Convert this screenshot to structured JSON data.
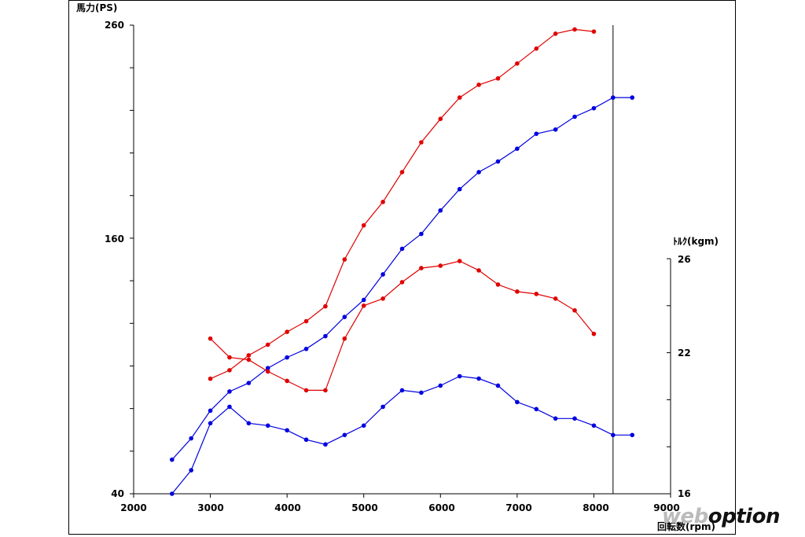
{
  "chart_data": {
    "type": "line",
    "title": "",
    "ylabel_left": "馬力(PS)",
    "ylabel_right": "ﾄﾙｸ(kgm)",
    "xlabel": "回転数(rpm)",
    "x_ticks": [
      2000,
      3000,
      4000,
      5000,
      6000,
      7000,
      8000,
      9000
    ],
    "x_tick_labels": [
      "2000",
      "3000",
      "4000",
      "5000",
      "6000",
      "7000",
      "8000",
      "9000"
    ],
    "y_left_tick_labels": [
      "260",
      "160",
      "40"
    ],
    "y_left_range": [
      40,
      260
    ],
    "y_right_tick_labels": [
      "26",
      "22",
      "16"
    ],
    "y_right_range": [
      16,
      26
    ],
    "x_range": [
      2000,
      9000
    ],
    "vertical_marker_rpm": 8250,
    "colors": {
      "red_series": "#e00000",
      "blue_series": "#0000e0"
    },
    "power_series": [
      {
        "color": "red",
        "x": [
          3000,
          3250,
          3500,
          3750,
          4000,
          4250,
          4500,
          4750,
          5000,
          5250,
          5500,
          5750,
          6000,
          6250,
          6500,
          6750,
          7000,
          7250,
          7500,
          7750,
          8000
        ],
        "y": [
          94,
          98,
          105,
          110,
          116,
          121,
          128,
          150,
          166,
          177,
          191,
          205,
          216,
          226,
          232,
          235,
          242,
          249,
          256,
          258,
          257
        ]
      },
      {
        "color": "blue",
        "x": [
          2500,
          2750,
          3000,
          3250,
          3500,
          3750,
          4000,
          4250,
          4500,
          4750,
          5000,
          5250,
          5500,
          5750,
          6000,
          6250,
          6500,
          6750,
          7000,
          7250,
          7500,
          7750,
          8000,
          8250,
          8500
        ],
        "y": [
          56,
          66,
          79,
          88,
          92,
          99,
          104,
          108,
          114,
          123,
          131,
          143,
          155,
          162,
          173,
          183,
          191,
          196,
          202,
          209,
          211,
          217,
          221,
          226,
          226
        ]
      }
    ],
    "torque_series": [
      {
        "color": "red",
        "x": [
          3000,
          3250,
          3500,
          3750,
          4000,
          4250,
          4500,
          4750,
          5000,
          5250,
          5500,
          5750,
          6000,
          6250,
          6500,
          6750,
          7000,
          7250,
          7500,
          7750,
          8000
        ],
        "y": [
          22.6,
          21.8,
          21.7,
          21.2,
          20.8,
          20.4,
          20.4,
          22.6,
          24.0,
          24.3,
          25.0,
          25.6,
          25.7,
          25.9,
          25.5,
          24.9,
          24.6,
          24.5,
          24.3,
          23.8,
          22.8
        ]
      },
      {
        "color": "blue",
        "x": [
          2500,
          2750,
          3000,
          3250,
          3500,
          3750,
          4000,
          4250,
          4500,
          4750,
          5000,
          5250,
          5500,
          5750,
          6000,
          6250,
          6500,
          6750,
          7000,
          7250,
          7500,
          7750,
          8000,
          8250,
          8500
        ],
        "y": [
          16.0,
          17.0,
          19.0,
          19.7,
          19.0,
          18.9,
          18.7,
          18.3,
          18.1,
          18.5,
          18.9,
          19.7,
          20.4,
          20.3,
          20.6,
          21.0,
          20.9,
          20.6,
          19.9,
          19.6,
          19.2,
          19.2,
          18.9,
          18.5,
          18.5
        ]
      }
    ]
  },
  "watermark": {
    "prefix": "web",
    "brand": "option"
  }
}
